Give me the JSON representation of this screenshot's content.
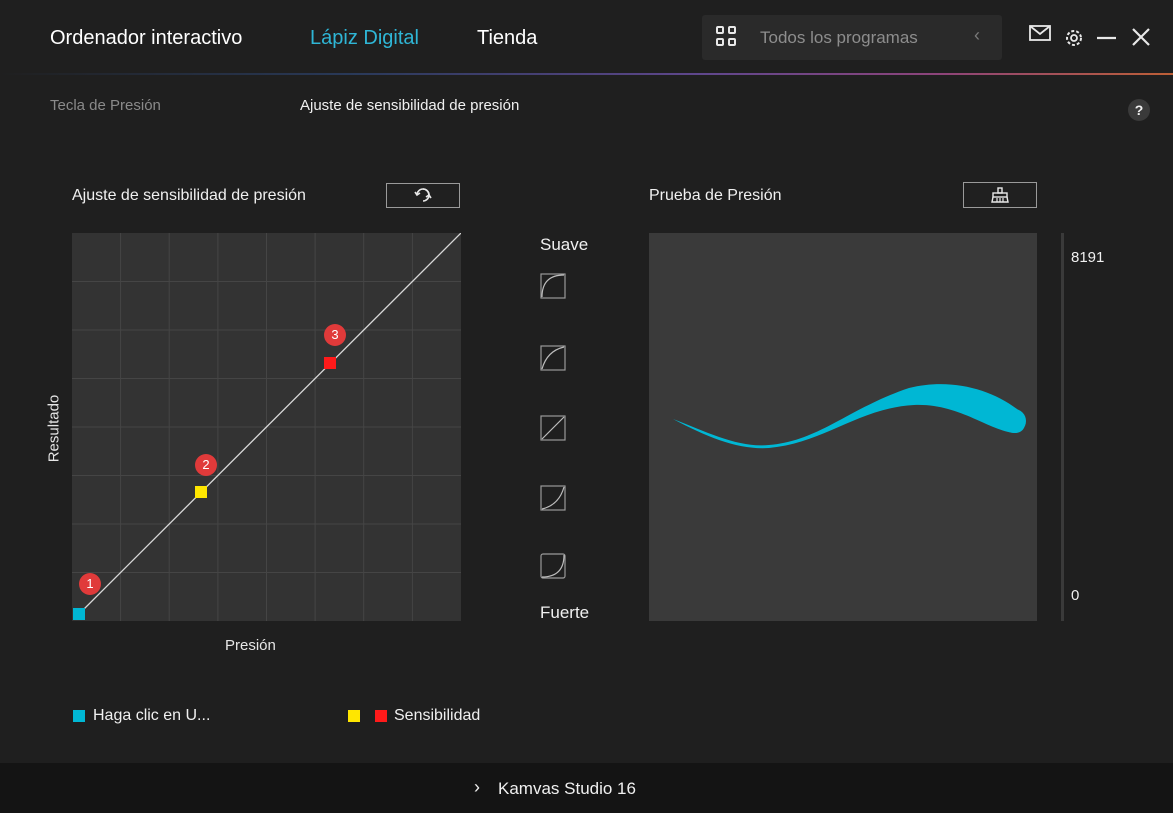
{
  "nav": {
    "tabs": [
      {
        "label": "Ordenador interactivo"
      },
      {
        "label": "Lápiz Digital"
      },
      {
        "label": "Tienda"
      }
    ],
    "active_tab": "Lápiz Digital",
    "programs_selector": {
      "label": "Todos los programas"
    }
  },
  "subtabs": [
    {
      "label": "Tecla de Presión"
    },
    {
      "label": "Ajuste de sensibilidad de presión"
    }
  ],
  "help": {
    "label": "?"
  },
  "sensitivity": {
    "title": "Ajuste de sensibilidad de presión",
    "x_label": "Presión",
    "y_label": "Resultado",
    "points": [
      {
        "badge": "1",
        "color": "#00b7d4"
      },
      {
        "badge": "2",
        "color": "#ffe600"
      },
      {
        "badge": "3",
        "color": "#ff1a1a"
      }
    ]
  },
  "curves": {
    "top_label": "Suave",
    "bottom_label": "Fuerte"
  },
  "test": {
    "title": "Prueba de Presión",
    "max_value": "8191",
    "min_value": "0",
    "stroke_color": "#00b7d4"
  },
  "legend": {
    "item1": "Haga clic en U...",
    "item2": "Sensibilidad"
  },
  "footer": {
    "device": "Kamvas Studio 16"
  },
  "colors": {
    "accent": "#2fb6d6",
    "background": "#1f1f1f",
    "panel": "#3a3a3a"
  }
}
